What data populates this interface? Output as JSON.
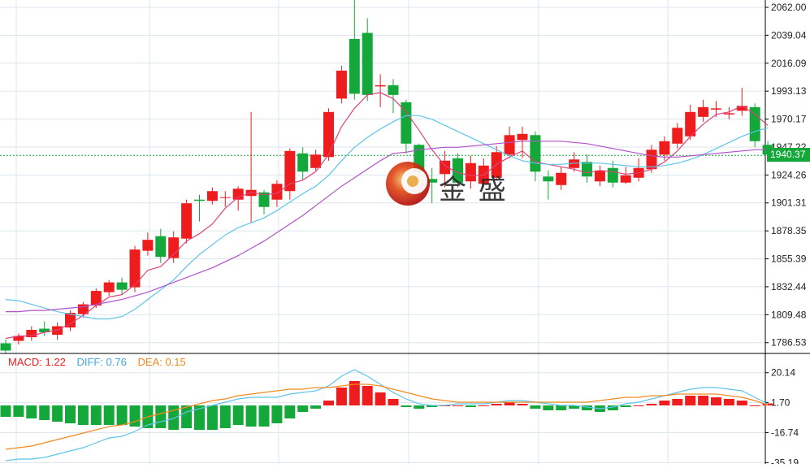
{
  "colors": {
    "up": "#ee1c1c",
    "down": "#14a83b",
    "ma5": "#e0417a",
    "ma10": "#5ec4e8",
    "ma20": "#b152c8",
    "diff": "#5ec4e8",
    "dea": "#f08a20",
    "grid": "#dce6ee",
    "axis_text": "#222222",
    "price_tag": "#14a83b"
  },
  "chart_data": [
    {
      "type": "candlestick",
      "title": "",
      "xlabel": "",
      "ylabel": "",
      "ylim": [
        1779,
        2068
      ],
      "y_ticks": [
        "2062.00",
        "2039.04",
        "2016.09",
        "1993.13",
        "1970.17",
        "1947.22",
        "1924.26",
        "1901.31",
        "1878.35",
        "1855.39",
        "1832.44",
        "1809.48",
        "1786.53"
      ],
      "last_price": "1940.37",
      "grid": true,
      "candles": [
        [
          1786,
          1780,
          1789,
          1778
        ],
        [
          1788,
          1792,
          1794,
          1785
        ],
        [
          1791,
          1797,
          1800,
          1788
        ],
        [
          1798,
          1795,
          1804,
          1792
        ],
        [
          1793,
          1800,
          1803,
          1789
        ],
        [
          1799,
          1811,
          1813,
          1796
        ],
        [
          1810,
          1818,
          1820,
          1807
        ],
        [
          1817,
          1829,
          1831,
          1815
        ],
        [
          1828,
          1836,
          1838,
          1825
        ],
        [
          1836,
          1830,
          1840,
          1826
        ],
        [
          1832,
          1863,
          1866,
          1828
        ],
        [
          1862,
          1871,
          1877,
          1858
        ],
        [
          1874,
          1857,
          1880,
          1852
        ],
        [
          1856,
          1873,
          1878,
          1852
        ],
        [
          1872,
          1901,
          1904,
          1868
        ],
        [
          1904,
          1903,
          1908,
          1886
        ],
        [
          1903,
          1911,
          1914,
          1900
        ],
        [
          1906,
          1906,
          1911,
          1898
        ],
        [
          1904,
          1913,
          1915,
          1895
        ],
        [
          1907,
          1912,
          1976,
          1885
        ],
        [
          1910,
          1898,
          1912,
          1892
        ],
        [
          1904,
          1917,
          1920,
          1898
        ],
        [
          1911,
          1944,
          1946,
          1904
        ],
        [
          1942,
          1927,
          1947,
          1920
        ],
        [
          1930,
          1941,
          1945,
          1928
        ],
        [
          1939,
          1976,
          1979,
          1936
        ],
        [
          1987,
          2010,
          2014,
          1983
        ],
        [
          2036,
          1991,
          2070,
          1986
        ],
        [
          2041,
          1990,
          2053,
          1985
        ],
        [
          1997,
          1998,
          2007,
          1980
        ],
        [
          1998,
          1990,
          2003,
          1975
        ],
        [
          1984,
          1950,
          1986,
          1942
        ],
        [
          1949,
          1927,
          1950,
          1925
        ],
        [
          1921,
          1918,
          1930,
          1901
        ],
        [
          1925,
          1936,
          1944,
          1914
        ],
        [
          1938,
          1918,
          1942,
          1914
        ],
        [
          1919,
          1934,
          1940,
          1913
        ],
        [
          1917,
          1932,
          1938,
          1914
        ],
        [
          1922,
          1943,
          1948,
          1920
        ],
        [
          1941,
          1957,
          1964,
          1938
        ],
        [
          1953,
          1958,
          1964,
          1938
        ],
        [
          1957,
          1927,
          1960,
          1919
        ],
        [
          1923,
          1919,
          1928,
          1904
        ],
        [
          1916,
          1926,
          1931,
          1912
        ],
        [
          1930,
          1937,
          1943,
          1927
        ],
        [
          1935,
          1923,
          1941,
          1918
        ],
        [
          1919,
          1928,
          1932,
          1915
        ],
        [
          1930,
          1918,
          1936,
          1914
        ],
        [
          1918,
          1924,
          1931,
          1917
        ],
        [
          1922,
          1930,
          1938,
          1919
        ],
        [
          1929,
          1945,
          1949,
          1926
        ],
        [
          1941,
          1952,
          1956,
          1936
        ],
        [
          1950,
          1963,
          1967,
          1946
        ],
        [
          1956,
          1976,
          1982,
          1953
        ],
        [
          1972,
          1980,
          1986,
          1968
        ],
        [
          1978,
          1979,
          1985,
          1972
        ],
        [
          1974,
          1975,
          1980,
          1970
        ],
        [
          1977,
          1981,
          1996,
          1973
        ],
        [
          1980,
          1952,
          1983,
          1947
        ],
        [
          1949,
          1941,
          1952,
          1939
        ]
      ],
      "ma_lines": [
        {
          "name": "MA5",
          "values": [
            1790,
            1792,
            1792,
            1795,
            1797,
            1802,
            1809,
            1817,
            1824,
            1826,
            1834,
            1846,
            1849,
            1859,
            1870,
            1876,
            1884,
            1897,
            1906,
            1910,
            1908,
            1909,
            1917,
            1920,
            1927,
            1941,
            1964,
            1979,
            1990,
            1992,
            1987,
            1976,
            1961,
            1945,
            1932,
            1926,
            1924,
            1924,
            1933,
            1939,
            1944,
            1935,
            1933,
            1931,
            1929,
            1926,
            1928,
            1927,
            1925,
            1926,
            1929,
            1935,
            1944,
            1956,
            1966,
            1974,
            1976,
            1981,
            1974,
            1965
          ]
        },
        {
          "name": "MA10",
          "values": [
            1822,
            1821,
            1818,
            1815,
            1812,
            1810,
            1808,
            1806,
            1806,
            1808,
            1814,
            1822,
            1830,
            1838,
            1849,
            1859,
            1867,
            1875,
            1881,
            1885,
            1889,
            1895,
            1902,
            1909,
            1915,
            1924,
            1936,
            1947,
            1955,
            1962,
            1968,
            1973,
            1973,
            1970,
            1965,
            1960,
            1955,
            1950,
            1945,
            1940,
            1936,
            1934,
            1933,
            1933,
            1934,
            1934,
            1934,
            1933,
            1932,
            1931,
            1931,
            1932,
            1934,
            1937,
            1941,
            1946,
            1951,
            1956,
            1960,
            1963
          ]
        },
        {
          "name": "MA20",
          "values": [
            1812,
            1812,
            1813,
            1813,
            1814,
            1815,
            1816,
            1818,
            1820,
            1822,
            1825,
            1828,
            1832,
            1836,
            1840,
            1844,
            1848,
            1853,
            1858,
            1864,
            1870,
            1877,
            1884,
            1891,
            1899,
            1907,
            1915,
            1922,
            1929,
            1936,
            1942,
            1943,
            1945,
            1946,
            1947,
            1947,
            1948,
            1949,
            1950,
            1951,
            1952,
            1952,
            1952,
            1952,
            1951,
            1950,
            1948,
            1946,
            1944,
            1942,
            1940,
            1939,
            1939,
            1940,
            1941,
            1942,
            1943,
            1944,
            1945,
            1945
          ]
        }
      ]
    },
    {
      "type": "bar",
      "title": "",
      "ylim": [
        -36,
        31
      ],
      "y_ticks": [
        "20.14",
        "1.70",
        "-16.74",
        "-35.19"
      ],
      "legend": {
        "macd": "MACD: 1.22",
        "diff": "DIFF: 0.76",
        "dea": "DEA: 0.15"
      },
      "macd_values": [
        -7,
        -7,
        -8,
        -9,
        -10,
        -11,
        -12,
        -12,
        -12,
        -12,
        -13,
        -14,
        -14,
        -15,
        -14,
        -15,
        -15,
        -14,
        -12,
        -13,
        -13,
        -11,
        -8,
        -4,
        -2,
        3,
        11,
        15,
        12,
        8,
        4,
        -1,
        -2,
        -1,
        0,
        0,
        -1,
        0,
        1,
        2,
        1,
        -2,
        -3,
        -3,
        -2,
        -3,
        -4,
        -3,
        -1,
        0,
        1,
        3,
        4,
        6,
        6,
        5,
        4,
        3,
        0,
        1.22
      ],
      "diff": [
        -34,
        -33,
        -33,
        -32,
        -30,
        -28,
        -26,
        -23,
        -20,
        -19,
        -16,
        -12,
        -10,
        -8,
        -4,
        -2,
        0,
        2,
        4,
        5,
        5,
        5,
        7,
        8,
        9,
        12,
        18,
        22,
        18,
        13,
        8,
        4,
        1,
        0,
        0,
        1,
        1,
        1,
        2,
        3,
        3,
        2,
        1,
        0,
        0,
        -1,
        -2,
        -1,
        1,
        2,
        4,
        6,
        8,
        10,
        11,
        11,
        10,
        9,
        5,
        0.76
      ],
      "dea": [
        -27,
        -26,
        -25,
        -23,
        -21,
        -19,
        -17,
        -15,
        -13,
        -12,
        -10,
        -7,
        -5,
        -3,
        -1,
        1,
        3,
        4,
        6,
        7,
        8,
        9,
        10,
        10,
        11,
        11,
        12,
        13,
        13,
        12,
        10,
        8,
        6,
        4,
        3,
        2,
        2,
        2,
        2,
        2,
        2,
        2,
        2,
        2,
        2,
        2,
        3,
        4,
        5,
        5,
        6,
        6,
        7,
        7,
        7,
        7,
        6,
        5,
        3,
        0.15
      ]
    }
  ],
  "logo": {
    "text": "金 盛"
  }
}
